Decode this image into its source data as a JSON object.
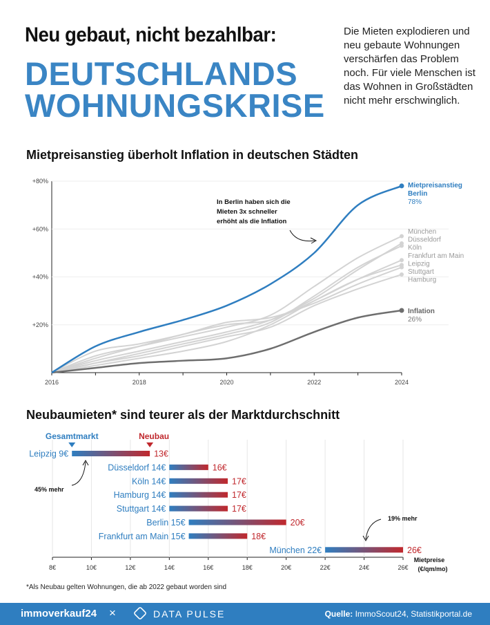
{
  "header": {
    "headline": "Neu gebaut, nicht bezahlbar:",
    "title_line1": "DEUTSCHLANDS",
    "title_line2": "WOHNUNGSKRISE",
    "intro": "Die Mieten explodieren und neu gebaute Wohnungen verschärfen das Problem noch. Für viele Menschen ist das Wohnen in Großstädten nicht mehr erschwinglich."
  },
  "colors": {
    "accent": "#3a85c4",
    "inflation": "#707070",
    "city": "#d0d0d0",
    "newbuild": "#c0282d"
  },
  "chart_data": [
    {
      "type": "line",
      "title": "Mietpreisanstieg überholt Inflation in deutschen Städten",
      "x": [
        2016,
        2017,
        2018,
        2019,
        2020,
        2021,
        2022,
        2023,
        2024
      ],
      "xticks": [
        "2016",
        "2018",
        "2020",
        "2022",
        "2024"
      ],
      "yticks": [
        "+20%",
        "+40%",
        "+60%",
        "+80%"
      ],
      "ylim": [
        0,
        80
      ],
      "annotation": "In Berlin haben sich die Mieten 3x schneller erhöht als die Inflation",
      "series": [
        {
          "name": "Mietpreisanstieg Berlin",
          "label_line1": "Mietpreisanstieg",
          "label_line2": "Berlin",
          "value_label": "78%",
          "role": "highlight",
          "values": [
            0,
            11,
            17,
            22,
            28,
            37,
            50,
            70,
            78
          ]
        },
        {
          "name": "Inflation",
          "value_label": "26%",
          "role": "inflation",
          "values": [
            0,
            2,
            4,
            5,
            6,
            10,
            17,
            23,
            26
          ]
        },
        {
          "name": "München",
          "role": "city",
          "values": [
            0,
            7,
            11,
            15,
            19,
            24,
            36,
            48,
            57
          ]
        },
        {
          "name": "Düsseldorf",
          "role": "city",
          "values": [
            0,
            5,
            9,
            13,
            17,
            22,
            31,
            43,
            54
          ]
        },
        {
          "name": "Köln",
          "role": "city",
          "values": [
            0,
            4,
            8,
            12,
            16,
            21,
            32,
            44,
            53
          ]
        },
        {
          "name": "Frankfurt am Main",
          "role": "city",
          "values": [
            0,
            6,
            11,
            16,
            20,
            22,
            30,
            39,
            47
          ]
        },
        {
          "name": "Leipzig",
          "role": "city",
          "values": [
            0,
            3,
            6,
            9,
            13,
            20,
            30,
            39,
            45
          ]
        },
        {
          "name": "Stuttgart",
          "role": "city",
          "values": [
            0,
            9,
            12,
            16,
            21,
            23,
            29,
            37,
            44
          ]
        },
        {
          "name": "Hamburg",
          "role": "city",
          "values": [
            0,
            4,
            7,
            11,
            15,
            19,
            28,
            35,
            41
          ]
        }
      ]
    },
    {
      "type": "bar",
      "title": "Neubaumieten* sind teurer als der Marktdurchschnitt",
      "legend_market": "Gesamtmarkt",
      "legend_new": "Neubau",
      "xlabel_line1": "Mietpreise",
      "xlabel_line2": "(€/qm/mo)",
      "xlim": [
        8,
        26
      ],
      "xticks": [
        "8€",
        "10€",
        "12€",
        "14€",
        "16€",
        "18€",
        "20€",
        "22€",
        "24€",
        "26€"
      ],
      "annotation_low": "45% mehr",
      "annotation_high": "19% mehr",
      "rows": [
        {
          "city": "Leipzig",
          "market": 9,
          "newbuild": 13,
          "market_label": "Leipzig 9€",
          "new_label": "13€"
        },
        {
          "city": "Düsseldorf",
          "market": 14,
          "newbuild": 16,
          "market_label": "Düsseldorf 14€",
          "new_label": "16€"
        },
        {
          "city": "Köln",
          "market": 14,
          "newbuild": 17,
          "market_label": "Köln 14€",
          "new_label": "17€"
        },
        {
          "city": "Hamburg",
          "market": 14,
          "newbuild": 17,
          "market_label": "Hamburg 14€",
          "new_label": "17€"
        },
        {
          "city": "Stuttgart",
          "market": 14,
          "newbuild": 17,
          "market_label": "Stuttgart 14€",
          "new_label": "17€"
        },
        {
          "city": "Berlin",
          "market": 15,
          "newbuild": 20,
          "market_label": "Berlin 15€",
          "new_label": "20€"
        },
        {
          "city": "Frankfurt am Main",
          "market": 15,
          "newbuild": 18,
          "market_label": "Frankfurt am Main 15€",
          "new_label": "18€"
        },
        {
          "city": "München",
          "market": 22,
          "newbuild": 26,
          "market_label": "München 22€",
          "new_label": "26€"
        }
      ]
    }
  ],
  "footnote": "*Als Neubau gelten Wohnungen, die ab 2022 gebaut worden sind",
  "footer": {
    "brand": "immoverkauf24",
    "separator": "×",
    "partner": "DATA PULSE",
    "source_label": "Quelle:",
    "source_text": " ImmoScout24, Statistikportal.de"
  }
}
